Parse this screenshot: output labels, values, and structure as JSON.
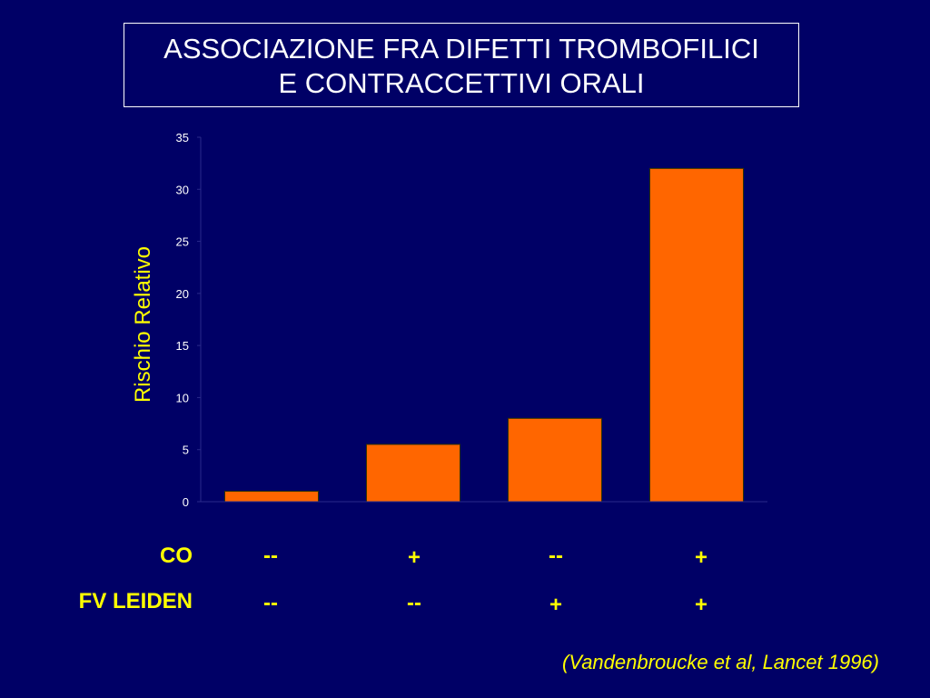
{
  "title": {
    "line1": "ASSOCIAZIONE FRA DIFETTI TROMBOFILICI",
    "line2": "E CONTRACCETTIVI ORALI"
  },
  "chart_data": {
    "type": "bar",
    "title": "ASSOCIAZIONE FRA DIFETTI TROMBOFILICI E CONTRACCETTIVI ORALI",
    "ylabel": "Rischio Relativo",
    "xlabel": "",
    "categories": [
      "CO -- / FV LEIDEN --",
      "CO + / FV LEIDEN --",
      "CO -- / FV LEIDEN +",
      "CO + / FV LEIDEN +"
    ],
    "values": [
      1,
      5.5,
      8,
      32
    ],
    "ylim": [
      0,
      35
    ],
    "yticks": [
      0,
      5,
      10,
      15,
      20,
      25,
      30,
      35
    ],
    "grid": false,
    "bar_color": "#ff6600",
    "bar_edge_color": "#333300",
    "axis_color": "#2a2a8a",
    "tick_label_color": "#ffffff"
  },
  "table": {
    "rows": [
      {
        "label": "CO",
        "cells": [
          "--",
          "+",
          "--",
          "+"
        ]
      },
      {
        "label": "FV LEIDEN",
        "cells": [
          "--",
          "--",
          "+",
          "+"
        ]
      }
    ]
  },
  "citation": "(Vandenbroucke et al, Lancet 1996)",
  "colors": {
    "background": "#000066",
    "title_text": "#ffffff",
    "accent_text": "#ffff00"
  }
}
